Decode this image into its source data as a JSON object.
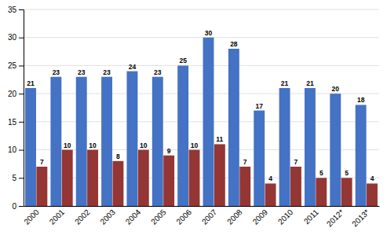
{
  "chart_data": {
    "type": "bar",
    "categories": [
      "2000",
      "2001",
      "2002",
      "2003",
      "2004",
      "2005",
      "2006",
      "2007",
      "2008",
      "2009",
      "2010",
      "2011",
      "2012*",
      "2013*"
    ],
    "series": [
      {
        "color": "#4472C4",
        "values": [
          21,
          23,
          23,
          23,
          24,
          23,
          25,
          30,
          28,
          17,
          21,
          21,
          20,
          18
        ]
      },
      {
        "color": "#943634",
        "values": [
          7,
          10,
          10,
          8,
          10,
          9,
          10,
          11,
          7,
          4,
          7,
          5,
          5,
          4
        ]
      }
    ],
    "ylim": [
      0,
      35
    ],
    "yticks": [
      0,
      5,
      10,
      15,
      20,
      25,
      30,
      35
    ],
    "grid": true,
    "data_labels": true
  }
}
